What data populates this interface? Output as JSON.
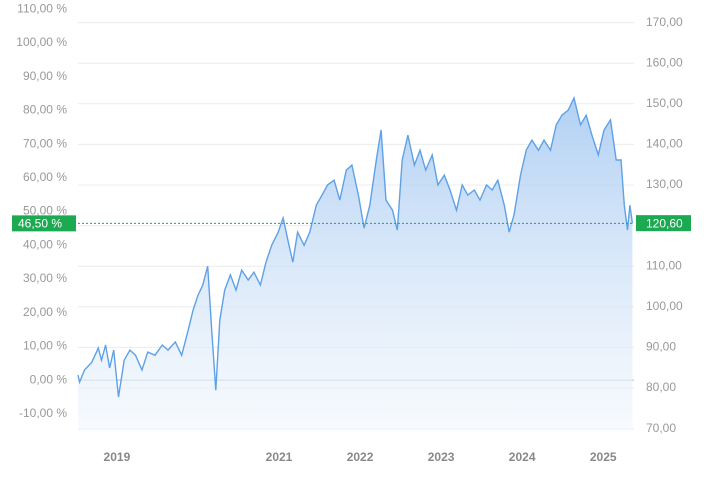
{
  "chart_data": {
    "type": "line",
    "x": [
      2018.52,
      2018.54,
      2018.6,
      2018.69,
      2018.77,
      2018.81,
      2018.86,
      2018.91,
      2018.96,
      2019.02,
      2019.09,
      2019.16,
      2019.23,
      2019.31,
      2019.38,
      2019.47,
      2019.56,
      2019.63,
      2019.72,
      2019.8,
      2019.88,
      2019.94,
      2020.0,
      2020.06,
      2020.12,
      2020.17,
      2020.22,
      2020.27,
      2020.33,
      2020.4,
      2020.47,
      2020.54,
      2020.62,
      2020.69,
      2020.77,
      2020.84,
      2020.91,
      2020.99,
      2021.05,
      2021.11,
      2021.17,
      2021.23,
      2021.31,
      2021.38,
      2021.46,
      2021.53,
      2021.6,
      2021.68,
      2021.75,
      2021.83,
      2021.9,
      2021.98,
      2022.05,
      2022.12,
      2022.2,
      2022.26,
      2022.32,
      2022.4,
      2022.46,
      2022.52,
      2022.59,
      2022.67,
      2022.74,
      2022.81,
      2022.89,
      2022.96,
      2023.04,
      2023.11,
      2023.19,
      2023.26,
      2023.33,
      2023.41,
      2023.48,
      2023.56,
      2023.63,
      2023.7,
      2023.78,
      2023.84,
      2023.9,
      2023.98,
      2024.05,
      2024.12,
      2024.2,
      2024.27,
      2024.35,
      2024.42,
      2024.49,
      2024.57,
      2024.64,
      2024.72,
      2024.79,
      2024.86,
      2024.94,
      2025.01,
      2025.09,
      2025.16,
      2025.22,
      2025.26,
      2025.3,
      2025.33,
      2025.36
    ],
    "series": [
      {
        "color": "#5ea1e6",
        "values": [
          1.5,
          -0.6,
          3,
          5.3,
          9.5,
          5.9,
          10.4,
          3.6,
          8.9,
          -5,
          5.9,
          8.9,
          7.4,
          3,
          8.3,
          7.4,
          10.4,
          8.9,
          11.3,
          7.4,
          14.8,
          20.8,
          25.2,
          28.2,
          33.8,
          14.8,
          -3,
          17.8,
          26.7,
          31.2,
          26.7,
          32.6,
          29.7,
          32,
          28.2,
          35,
          40,
          43.9,
          48.1,
          41.5,
          35,
          43.9,
          40,
          43.9,
          51.9,
          54.9,
          57.9,
          59.3,
          53.4,
          62.3,
          63.8,
          54.9,
          45.1,
          51.9,
          65.3,
          74.2,
          53.4,
          50.4,
          44.5,
          65.3,
          72.7,
          63.8,
          68.2,
          62.3,
          66.8,
          57.9,
          60.8,
          56.4,
          50.4,
          57.9,
          54.9,
          56.4,
          53.4,
          57.9,
          56.4,
          59.3,
          51.9,
          43.9,
          49,
          60.8,
          68.2,
          71.2,
          68.2,
          71.2,
          68.2,
          75.7,
          78.6,
          80.1,
          83.7,
          75.7,
          78.6,
          72.7,
          66.8,
          74.2,
          77.2,
          65.3,
          65.3,
          51.9,
          44.5,
          51.9,
          46.5
        ]
      }
    ],
    "xlim": [
      2018.52,
      2025.38
    ],
    "xticks": [
      2019,
      2021,
      2022,
      2023,
      2024,
      2025
    ],
    "ylim": [
      -15.1,
      109.8
    ],
    "yticks": [
      {
        "value": 110,
        "label": "110,00 %"
      },
      {
        "value": 100,
        "label": "100,00 %"
      },
      {
        "value": 90,
        "label": "90,00 %"
      },
      {
        "value": 80,
        "label": "80,00 %"
      },
      {
        "value": 70,
        "label": "70,00 %"
      },
      {
        "value": 60,
        "label": "60,00 %"
      },
      {
        "value": 50,
        "label": "50,00 %"
      },
      {
        "value": 40,
        "label": "40,00 %"
      },
      {
        "value": 30,
        "label": "30,00 %"
      },
      {
        "value": 20,
        "label": "20,00 %"
      },
      {
        "value": 10,
        "label": "10,00 %"
      },
      {
        "value": 0,
        "label": "0,00 %"
      },
      {
        "value": -10,
        "label": "-10,00 %"
      }
    ],
    "y2lim": [
      69.41,
      173.1
    ],
    "y2ticks": [
      {
        "value": 170,
        "label": "170,00"
      },
      {
        "value": 160,
        "label": "160,00"
      },
      {
        "value": 150,
        "label": "150,00"
      },
      {
        "value": 140,
        "label": "140,00"
      },
      {
        "value": 130,
        "label": "130,00"
      },
      {
        "value": 120,
        "label": "120,00"
      },
      {
        "value": 110,
        "label": "110,00"
      },
      {
        "value": 100,
        "label": "100,00"
      },
      {
        "value": 90,
        "label": "90,00"
      },
      {
        "value": 80,
        "label": "80,00"
      },
      {
        "value": 70,
        "label": "70,00"
      }
    ],
    "current": {
      "value": 46.5,
      "label": "46,50 %"
    },
    "current_y2": {
      "value": 120.6,
      "label": "120,60"
    },
    "badge_color": "#1ba952",
    "grid": true
  }
}
